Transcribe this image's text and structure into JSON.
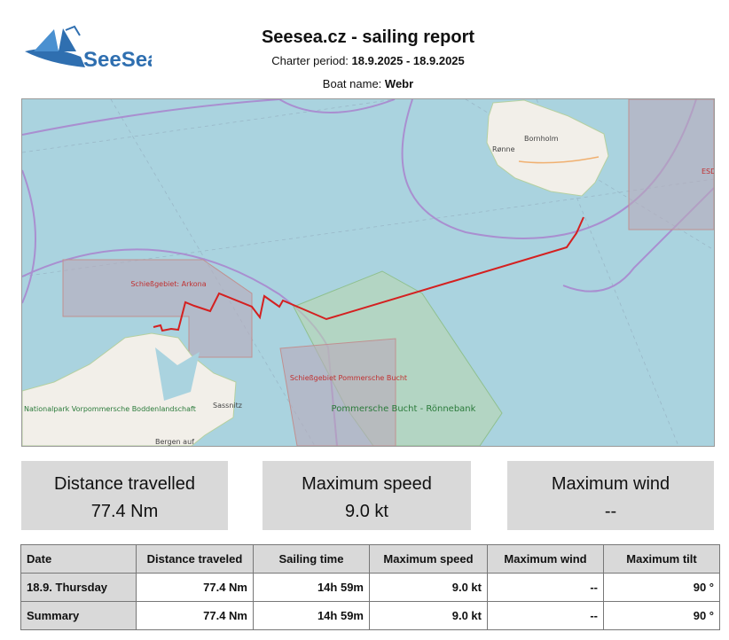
{
  "header": {
    "logo_text": "SeeSea",
    "title": "Seesea.cz - sailing report",
    "charter_label": "Charter period:",
    "charter_value": "18.9.2025 - 18.9.2025",
    "boat_label": "Boat name:",
    "boat_value": "Webr"
  },
  "map": {
    "labels": [
      "Schießgebiet: Arkona",
      "Rønne",
      "Bornholm",
      "Schießgebiet Pommersche Bucht",
      "Pommersche Bucht - Rönnebank",
      "Nationalpark Vorpommersche Boddenlandschaft",
      "Sassnitz",
      "Bergen auf",
      "ESD"
    ]
  },
  "summary": [
    {
      "label": "Distance travelled",
      "value": "77.4 Nm"
    },
    {
      "label": "Maximum speed",
      "value": "9.0 kt"
    },
    {
      "label": "Maximum wind",
      "value": "--"
    }
  ],
  "table": {
    "columns": [
      "Date",
      "Distance traveled",
      "Sailing time",
      "Maximum speed",
      "Maximum wind",
      "Maximum tilt"
    ],
    "rows": [
      [
        "18.9. Thursday",
        "77.4  Nm",
        "14h 59m",
        "9.0 kt",
        "--",
        "90 °"
      ],
      [
        "Summary",
        "77.4  Nm",
        "14h 59m",
        "9.0 kt",
        "--",
        "90 °"
      ]
    ]
  }
}
